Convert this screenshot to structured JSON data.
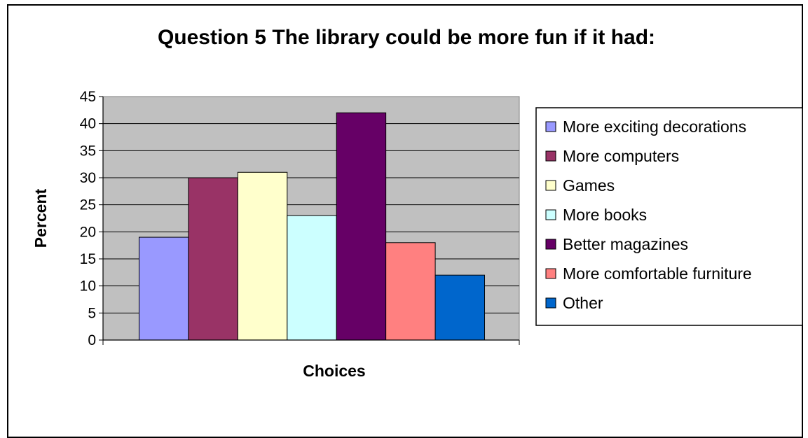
{
  "chart_data": {
    "type": "bar",
    "title": "Question 5 The library could be more fun if it had:",
    "xlabel": "Choices",
    "ylabel": "Percent",
    "ylim": [
      0,
      45
    ],
    "yticks": [
      0,
      5,
      10,
      15,
      20,
      25,
      30,
      35,
      40,
      45
    ],
    "grid": true,
    "legend_position": "right",
    "plot_background": "#c0c0c0",
    "series": [
      {
        "name": "More exciting decorations",
        "values": [
          19
        ],
        "color": "#9999ff"
      },
      {
        "name": "More computers",
        "values": [
          30
        ],
        "color": "#993366"
      },
      {
        "name": "Games",
        "values": [
          31
        ],
        "color": "#ffffcc"
      },
      {
        "name": "More books",
        "values": [
          23
        ],
        "color": "#ccffff"
      },
      {
        "name": "Better magazines",
        "values": [
          42
        ],
        "color": "#660066"
      },
      {
        "name": "More comfortable furniture",
        "values": [
          18
        ],
        "color": "#ff8080"
      },
      {
        "name": "Other",
        "values": [
          12
        ],
        "color": "#0066cc"
      }
    ]
  }
}
